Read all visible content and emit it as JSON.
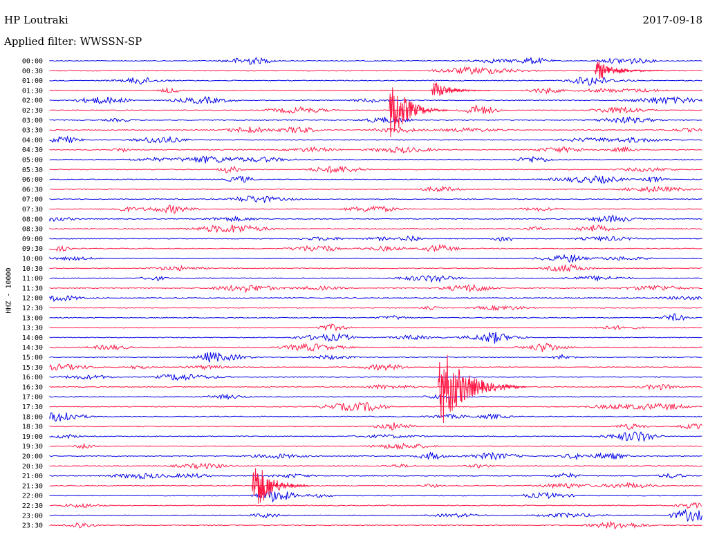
{
  "header": {
    "station": "HP Loutraki",
    "date": "2017-09-18",
    "filter": "Applied filter: WWSSN-SP",
    "channel": "HHZ - 10000"
  },
  "colors": {
    "even_trace": "#0000e6",
    "odd_trace": "#ff1744",
    "background": "#ffffff",
    "text": "#000000"
  },
  "rows": [
    {
      "label": "00:00"
    },
    {
      "label": "00:30"
    },
    {
      "label": "01:00"
    },
    {
      "label": "01:30"
    },
    {
      "label": "02:00"
    },
    {
      "label": "02:30"
    },
    {
      "label": "03:00"
    },
    {
      "label": "03:30"
    },
    {
      "label": "04:00"
    },
    {
      "label": "04:30"
    },
    {
      "label": "05:00"
    },
    {
      "label": "05:30"
    },
    {
      "label": "06:00"
    },
    {
      "label": "06:30"
    },
    {
      "label": "07:00"
    },
    {
      "label": "07:30"
    },
    {
      "label": "08:00"
    },
    {
      "label": "08:30"
    },
    {
      "label": "09:00"
    },
    {
      "label": "09:30"
    },
    {
      "label": "10:00"
    },
    {
      "label": "10:30"
    },
    {
      "label": "11:00"
    },
    {
      "label": "11:30"
    },
    {
      "label": "12:00"
    },
    {
      "label": "12:30"
    },
    {
      "label": "13:00"
    },
    {
      "label": "13:30"
    },
    {
      "label": "14:00"
    },
    {
      "label": "14:30"
    },
    {
      "label": "15:00"
    },
    {
      "label": "15:30"
    },
    {
      "label": "16:00"
    },
    {
      "label": "16:30"
    },
    {
      "label": "17:00"
    },
    {
      "label": "17:30"
    },
    {
      "label": "18:00"
    },
    {
      "label": "18:30"
    },
    {
      "label": "19:00"
    },
    {
      "label": "19:30"
    },
    {
      "label": "20:00"
    },
    {
      "label": "20:30"
    },
    {
      "label": "21:00"
    },
    {
      "label": "21:30"
    },
    {
      "label": "22:00"
    },
    {
      "label": "22:30"
    },
    {
      "label": "23:00"
    },
    {
      "label": "23:30"
    }
  ],
  "events": [
    {
      "row": 1,
      "t": 0.835,
      "amp": 18,
      "decay": 0.035,
      "name": "event-0030"
    },
    {
      "row": 3,
      "t": 0.585,
      "amp": 16,
      "decay": 0.03,
      "name": "event-0130"
    },
    {
      "row": 5,
      "t": 0.52,
      "amp": 55,
      "decay": 0.03,
      "name": "event-0230"
    },
    {
      "row": 33,
      "t": 0.595,
      "amp": 70,
      "decay": 0.045,
      "name": "event-1630"
    },
    {
      "row": 43,
      "t": 0.31,
      "amp": 48,
      "decay": 0.03,
      "name": "event-2130"
    }
  ]
}
